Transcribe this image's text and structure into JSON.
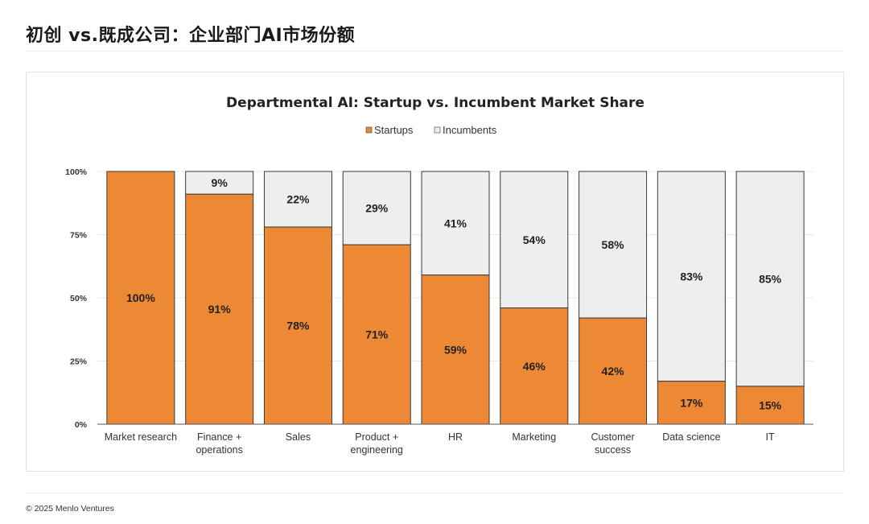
{
  "page": {
    "title": "初创 vs.既成公司：企业部门AI市场份额",
    "footer": "© 2025 Menlo Ventures"
  },
  "colors": {
    "startups": "#ed8834",
    "incumbents": "#eeeeee",
    "bar_outline": "#3a3a3a"
  },
  "chart_data": {
    "type": "bar",
    "stacked": true,
    "title": "Departmental AI: Startup vs. Incumbent Market Share",
    "categories": [
      [
        "Market research"
      ],
      [
        "Finance +",
        "operations"
      ],
      [
        "Sales"
      ],
      [
        "Product +",
        "engineering"
      ],
      [
        "HR"
      ],
      [
        "Marketing"
      ],
      [
        "Customer",
        "success"
      ],
      [
        "Data science"
      ],
      [
        "IT"
      ]
    ],
    "series": [
      {
        "name": "Startups",
        "values": [
          100,
          91,
          78,
          71,
          59,
          46,
          42,
          17,
          15
        ]
      },
      {
        "name": "Incumbents",
        "values": [
          0,
          9,
          22,
          29,
          41,
          54,
          58,
          83,
          85
        ]
      }
    ],
    "ylim": [
      0,
      100
    ],
    "yticks": [
      "0%",
      "25%",
      "50%",
      "75%",
      "100%"
    ],
    "legend": "top-center",
    "grid": true
  }
}
